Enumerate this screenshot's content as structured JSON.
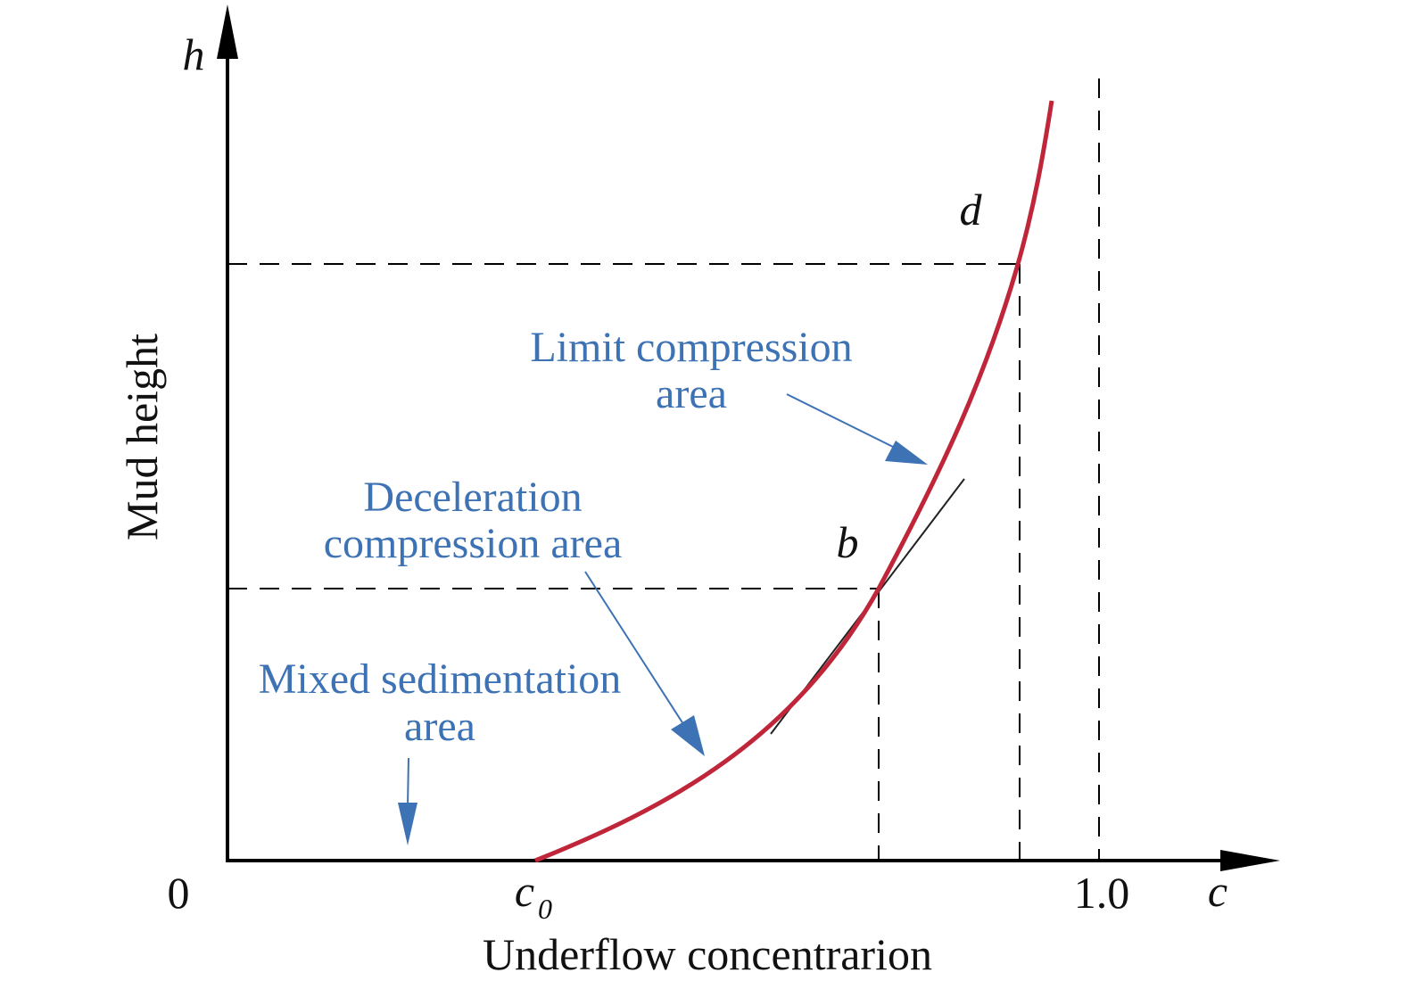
{
  "colors": {
    "curve": "#c0263a",
    "annotation": "#3d72b4",
    "axis": "#000000",
    "guide": "#000000"
  },
  "axes": {
    "x_title": "Underflow concentrarion",
    "y_title": "Mud height",
    "x_symbol": "c",
    "y_symbol": "h",
    "origin_label": "0",
    "c0_label_main": "c",
    "c0_label_sub": "0",
    "one_label": "1.0"
  },
  "points": {
    "b": "b",
    "d": "d"
  },
  "regions": {
    "limit_line1": "Limit compression",
    "limit_line2": "area",
    "decel_line1": "Deceleration",
    "decel_line2": "compression area",
    "mixed_line1": "Mixed sedimentation",
    "mixed_line2": "area"
  }
}
